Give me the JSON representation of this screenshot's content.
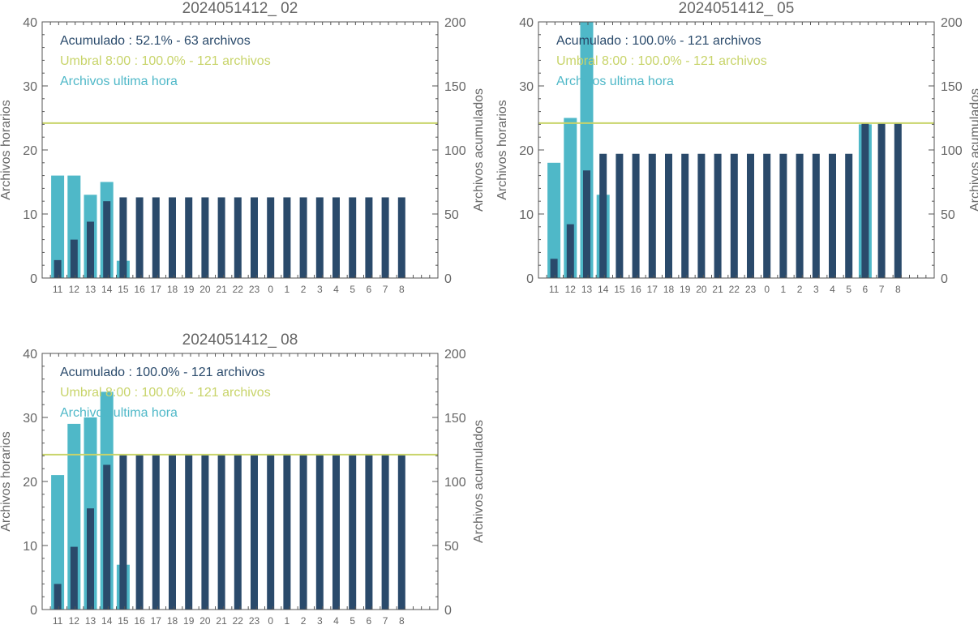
{
  "colors": {
    "hourly": "#4fb8c8",
    "cumulative": "#2a4a6b",
    "threshold": "#c8d46a",
    "axis": "#555555",
    "text": "#666666"
  },
  "chart_data": [
    {
      "type": "bar",
      "title": "2024051412_ 02",
      "categories": [
        "11",
        "12",
        "13",
        "14",
        "15",
        "16",
        "17",
        "18",
        "19",
        "20",
        "21",
        "22",
        "23",
        "0",
        "1",
        "2",
        "3",
        "4",
        "5",
        "6",
        "7",
        "8"
      ],
      "ylabel": "Archivos horarios",
      "y2label": "Archivos acumulados",
      "ylim": [
        0,
        40
      ],
      "y2lim": [
        0,
        200
      ],
      "yticks": [
        "0",
        "10",
        "20",
        "30",
        "40"
      ],
      "y2ticks": [
        "0",
        "50",
        "100",
        "150",
        "200"
      ],
      "threshold": 121,
      "series": [
        {
          "name": "Archivos ultima hora",
          "axis": "left",
          "values": [
            16,
            16,
            13,
            15,
            2.7,
            null,
            null,
            null,
            null,
            null,
            null,
            null,
            null,
            null,
            null,
            null,
            null,
            null,
            null,
            null,
            null,
            null
          ]
        },
        {
          "name": "Acumulado",
          "axis": "right",
          "values": [
            14,
            30,
            44,
            60,
            63,
            63,
            63,
            63,
            63,
            63,
            63,
            63,
            63,
            63,
            63,
            63,
            63,
            63,
            63,
            63,
            63,
            63
          ]
        }
      ],
      "legend": [
        {
          "text": "Acumulado : 52.1% - 63 archivos",
          "role": "cumulative"
        },
        {
          "text": "Umbral 8:00 : 100.0% - 121 archivos",
          "role": "threshold"
        },
        {
          "text": "Archivos ultima hora",
          "role": "hourly"
        }
      ]
    },
    {
      "type": "bar",
      "title": "2024051412_ 05",
      "categories": [
        "11",
        "12",
        "13",
        "14",
        "15",
        "16",
        "17",
        "18",
        "19",
        "20",
        "21",
        "22",
        "23",
        "0",
        "1",
        "2",
        "3",
        "4",
        "5",
        "6",
        "7",
        "8"
      ],
      "ylabel": "Archivos horarios",
      "y2label": "Archivos acumulados",
      "ylim": [
        0,
        40
      ],
      "y2lim": [
        0,
        200
      ],
      "yticks": [
        "0",
        "10",
        "20",
        "30",
        "40"
      ],
      "y2ticks": [
        "0",
        "50",
        "100",
        "150",
        "200"
      ],
      "threshold": 121,
      "series": [
        {
          "name": "Archivos ultima hora",
          "axis": "left",
          "values": [
            18,
            25,
            42,
            13,
            null,
            null,
            null,
            null,
            null,
            null,
            null,
            null,
            null,
            null,
            null,
            null,
            null,
            null,
            null,
            24,
            null,
            null
          ]
        },
        {
          "name": "Acumulado",
          "axis": "right",
          "values": [
            15,
            42,
            84,
            97,
            97,
            97,
            97,
            97,
            97,
            97,
            97,
            97,
            97,
            97,
            97,
            97,
            97,
            97,
            97,
            121,
            121,
            121
          ]
        }
      ],
      "legend": [
        {
          "text": "Acumulado : 100.0% - 121 archivos",
          "role": "cumulative"
        },
        {
          "text": "Umbral 8:00 : 100.0% - 121 archivos",
          "role": "threshold"
        },
        {
          "text": "Archivos ultima hora",
          "role": "hourly"
        }
      ]
    },
    {
      "type": "bar",
      "title": "2024051412_ 08",
      "categories": [
        "11",
        "12",
        "13",
        "14",
        "15",
        "16",
        "17",
        "18",
        "19",
        "20",
        "21",
        "22",
        "23",
        "0",
        "1",
        "2",
        "3",
        "4",
        "5",
        "6",
        "7",
        "8"
      ],
      "ylabel": "Archivos horarios",
      "y2label": "Archivos acumulados",
      "ylim": [
        0,
        40
      ],
      "y2lim": [
        0,
        200
      ],
      "yticks": [
        "0",
        "10",
        "20",
        "30",
        "40"
      ],
      "y2ticks": [
        "0",
        "50",
        "100",
        "150",
        "200"
      ],
      "threshold": 121,
      "series": [
        {
          "name": "Archivos ultima hora",
          "axis": "left",
          "values": [
            21,
            29,
            30,
            34,
            7,
            null,
            null,
            null,
            null,
            null,
            null,
            null,
            null,
            null,
            null,
            null,
            null,
            null,
            null,
            null,
            null,
            null
          ]
        },
        {
          "name": "Acumulado",
          "axis": "right",
          "values": [
            20,
            49,
            79,
            113,
            121,
            121,
            121,
            121,
            121,
            121,
            121,
            121,
            121,
            121,
            121,
            121,
            121,
            121,
            121,
            121,
            121,
            121
          ]
        }
      ],
      "legend": [
        {
          "text": "Acumulado : 100.0% - 121 archivos",
          "role": "cumulative"
        },
        {
          "text": "Umbral 8:00 : 100.0% - 121 archivos",
          "role": "threshold"
        },
        {
          "text": "Archivos ultima hora",
          "role": "hourly"
        }
      ]
    }
  ]
}
